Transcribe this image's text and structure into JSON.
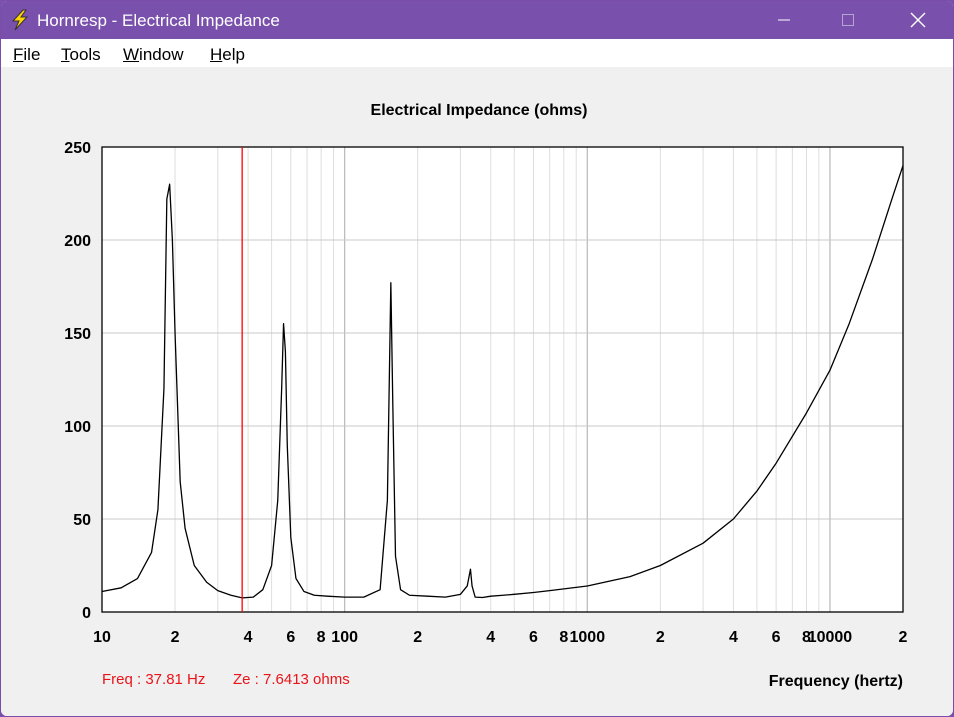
{
  "window": {
    "title": "Hornresp - Electrical Impedance",
    "icon": "lightning-bolt-icon",
    "controls": [
      "minimize-icon",
      "maximize-icon",
      "close-icon"
    ]
  },
  "menu": {
    "items": [
      {
        "label": "File",
        "accel": "F",
        "rest": "ile"
      },
      {
        "label": "Tools",
        "accel": "T",
        "rest": "ools"
      },
      {
        "label": "Window",
        "accel": "W",
        "rest": "indow"
      },
      {
        "label": "Help",
        "accel": "H",
        "rest": "elp"
      }
    ]
  },
  "status": {
    "freq": "Freq : 37.81 Hz",
    "ze": "Ze : 7.6413 ohms"
  },
  "colors": {
    "titlebar": "#7a50ad",
    "marker": "#ff0000",
    "curve": "#000000",
    "grid": "#c8c8c8"
  },
  "chart_data": {
    "type": "line",
    "title": "Electrical Impedance (ohms)",
    "xlabel": "Frequency (hertz)",
    "ylabel": "",
    "xscale": "log",
    "xlim": [
      10,
      20000
    ],
    "ylim": [
      0,
      250
    ],
    "yticks": [
      0,
      50,
      100,
      150,
      200,
      250
    ],
    "xtick_labels": [
      {
        "value": 10,
        "label": "10"
      },
      {
        "value": 20,
        "label": "2"
      },
      {
        "value": 40,
        "label": "4"
      },
      {
        "value": 60,
        "label": "6"
      },
      {
        "value": 80,
        "label": "8"
      },
      {
        "value": 100,
        "label": "100"
      },
      {
        "value": 200,
        "label": "2"
      },
      {
        "value": 400,
        "label": "4"
      },
      {
        "value": 600,
        "label": "6"
      },
      {
        "value": 800,
        "label": "8"
      },
      {
        "value": 1000,
        "label": "1000"
      },
      {
        "value": 2000,
        "label": "2"
      },
      {
        "value": 4000,
        "label": "4"
      },
      {
        "value": 6000,
        "label": "6"
      },
      {
        "value": 8000,
        "label": "8"
      },
      {
        "value": 10000,
        "label": "10000"
      },
      {
        "value": 20000,
        "label": "2"
      }
    ],
    "grid": true,
    "marker_x": 37.81,
    "series": [
      {
        "name": "Impedance",
        "x": [
          10,
          12,
          14,
          16,
          17,
          18,
          18.5,
          19,
          19.5,
          20,
          21,
          22,
          24,
          27,
          30,
          34,
          37.81,
          42,
          46,
          50,
          53,
          55,
          56,
          57,
          58,
          60,
          63,
          68,
          75,
          85,
          100,
          120,
          140,
          150,
          155,
          158,
          162,
          170,
          185,
          220,
          260,
          300,
          320,
          330,
          335,
          345,
          370,
          400,
          450,
          500,
          600,
          700,
          1000,
          1500,
          2000,
          3000,
          4000,
          5000,
          6000,
          8000,
          10000,
          12000,
          15000,
          18000,
          20000
        ],
        "y": [
          11,
          13,
          18,
          32,
          55,
          120,
          222,
          230,
          200,
          150,
          70,
          45,
          25,
          16,
          11.5,
          9,
          7.6,
          8,
          12,
          25,
          60,
          120,
          155,
          140,
          90,
          40,
          18,
          11,
          9,
          8.5,
          8,
          8,
          12,
          60,
          177,
          110,
          30,
          12,
          9,
          8.5,
          8,
          9.5,
          14,
          23,
          14,
          8,
          7.8,
          8.5,
          9,
          9.5,
          10.5,
          11.5,
          14,
          19,
          25,
          37,
          50,
          65,
          80,
          107,
          130,
          155,
          190,
          222,
          240
        ]
      }
    ]
  }
}
